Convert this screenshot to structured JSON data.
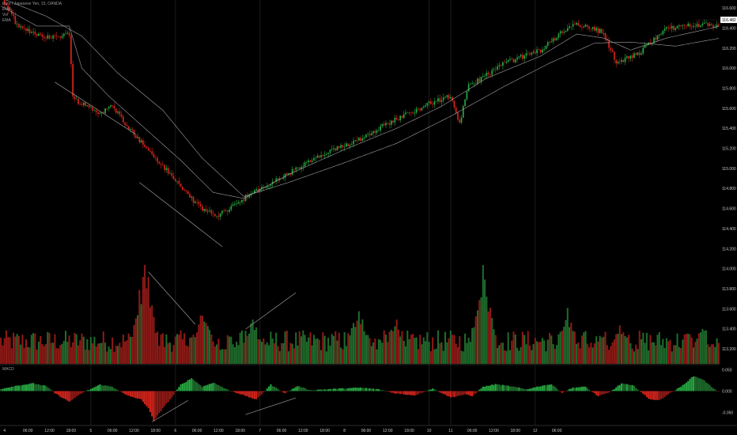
{
  "legend": {
    "symbol": "Euro / Japanese Yen, 15, OANDA",
    "ind1": "EMA",
    "ind2": "Vol",
    "ind3": "EMA"
  },
  "macd_label": "MACD",
  "colors": {
    "background": "#000000",
    "up": "#26a541",
    "down": "#d1241c",
    "up_volume": "#1f6b2c",
    "down_volume": "#8e1a16",
    "ema_line": "#bdbdbd",
    "trend_line": "#9a9a9a",
    "axis_text": "#c8c8c8",
    "last_price_bg": "#ffffff",
    "last_price_text": "#000000"
  },
  "chart_data": [
    {
      "type": "candlestick",
      "name": "price",
      "y_ticks": [
        "116.600",
        "116.400",
        "116.200",
        "116.000",
        "115.800",
        "115.600",
        "115.400",
        "115.200",
        "115.000",
        "114.800",
        "114.600",
        "114.400",
        "114.200",
        "114.000",
        "113.800",
        "113.600",
        "113.400",
        "113.200"
      ],
      "ylim": [
        113.05,
        116.68
      ],
      "last_price": "116.482",
      "x_ticks": [
        "4",
        "06:00",
        "12:00",
        "18:00",
        "5",
        "06:00",
        "12:00",
        "18:00",
        "6",
        "06:00",
        "12:00",
        "18:00",
        "7",
        "06:00",
        "12:00",
        "18:00",
        "8",
        "06:00",
        "12:00",
        "18:00",
        "10",
        "11",
        "06:00",
        "12:00",
        "18:00",
        "12",
        "06:00"
      ],
      "day_dividers": [
        "5",
        "6",
        "7",
        "10",
        "11",
        "12"
      ],
      "price_path": [
        [
          0,
          116.72
        ],
        [
          10,
          116.4
        ],
        [
          28,
          116.3
        ],
        [
          38,
          116.35
        ],
        [
          40,
          115.7
        ],
        [
          55,
          115.55
        ],
        [
          62,
          115.62
        ],
        [
          75,
          115.32
        ],
        [
          95,
          114.92
        ],
        [
          110,
          114.62
        ],
        [
          120,
          114.52
        ],
        [
          135,
          114.7
        ],
        [
          150,
          114.85
        ],
        [
          175,
          115.1
        ],
        [
          200,
          115.3
        ],
        [
          215,
          115.45
        ],
        [
          230,
          115.58
        ],
        [
          240,
          115.66
        ],
        [
          250,
          115.72
        ],
        [
          255,
          115.45
        ],
        [
          260,
          115.82
        ],
        [
          280,
          116.05
        ],
        [
          300,
          116.18
        ],
        [
          318,
          116.45
        ],
        [
          335,
          116.36
        ],
        [
          342,
          116.05
        ],
        [
          355,
          116.15
        ],
        [
          368,
          116.38
        ],
        [
          385,
          116.44
        ],
        [
          400,
          116.42
        ]
      ],
      "ema_fast_path": [
        [
          0,
          116.62
        ],
        [
          20,
          116.42
        ],
        [
          38,
          116.42
        ],
        [
          45,
          116.0
        ],
        [
          60,
          115.72
        ],
        [
          80,
          115.4
        ],
        [
          100,
          115.08
        ],
        [
          118,
          114.76
        ],
        [
          135,
          114.7
        ],
        [
          160,
          114.94
        ],
        [
          190,
          115.18
        ],
        [
          220,
          115.4
        ],
        [
          245,
          115.62
        ],
        [
          270,
          115.9
        ],
        [
          300,
          116.12
        ],
        [
          320,
          116.34
        ],
        [
          335,
          116.3
        ],
        [
          350,
          116.18
        ],
        [
          370,
          116.3
        ],
        [
          400,
          116.42
        ]
      ],
      "ema_slow_path": [
        [
          0,
          116.7
        ],
        [
          25,
          116.52
        ],
        [
          45,
          116.32
        ],
        [
          65,
          115.95
        ],
        [
          90,
          115.58
        ],
        [
          112,
          115.1
        ],
        [
          135,
          114.72
        ],
        [
          160,
          114.86
        ],
        [
          190,
          115.05
        ],
        [
          220,
          115.25
        ],
        [
          250,
          115.52
        ],
        [
          280,
          115.82
        ],
        [
          305,
          116.05
        ],
        [
          330,
          116.25
        ],
        [
          350,
          116.26
        ],
        [
          375,
          116.22
        ],
        [
          400,
          116.3
        ]
      ],
      "trend_lines": [
        [
          [
            30,
            115.86
          ],
          [
            75,
            115.34
          ]
        ],
        [
          [
            77,
            114.86
          ],
          [
            123,
            114.22
          ]
        ]
      ]
    },
    {
      "type": "bar",
      "name": "volume",
      "bar_count": 400,
      "spikes": [
        [
          80,
          1.0
        ],
        [
          112,
          0.55
        ],
        [
          140,
          0.45
        ],
        [
          199,
          0.58
        ],
        [
          220,
          0.45
        ],
        [
          268,
          0.95
        ],
        [
          315,
          0.52
        ],
        [
          345,
          0.4
        ],
        [
          390,
          0.35
        ]
      ],
      "trend_lines": [
        [
          [
            82,
            0.93
          ],
          [
            108,
            0.4
          ]
        ],
        [
          [
            136,
            0.35
          ],
          [
            164,
            0.72
          ]
        ]
      ]
    },
    {
      "type": "bar",
      "name": "macd",
      "y_ticks": [
        "0.050",
        "0.000",
        "-0.050"
      ],
      "ylim": [
        -0.075,
        0.06
      ],
      "histogram_path": [
        [
          0,
          0.005
        ],
        [
          8,
          0.012
        ],
        [
          18,
          0.018
        ],
        [
          25,
          0.012
        ],
        [
          30,
          -0.005
        ],
        [
          38,
          -0.025
        ],
        [
          45,
          -0.005
        ],
        [
          55,
          0.015
        ],
        [
          62,
          0.01
        ],
        [
          70,
          -0.01
        ],
        [
          78,
          -0.02
        ],
        [
          82,
          -0.04
        ],
        [
          85,
          -0.07
        ],
        [
          90,
          -0.04
        ],
        [
          95,
          -0.015
        ],
        [
          100,
          0.015
        ],
        [
          106,
          0.03
        ],
        [
          112,
          0.01
        ],
        [
          118,
          0.02
        ],
        [
          125,
          0.005
        ],
        [
          135,
          -0.01
        ],
        [
          142,
          -0.02
        ],
        [
          150,
          0.015
        ],
        [
          158,
          -0.005
        ],
        [
          165,
          0.012
        ],
        [
          172,
          0.002
        ],
        [
          180,
          0.004
        ],
        [
          190,
          0.006
        ],
        [
          200,
          0.008
        ],
        [
          210,
          0.004
        ],
        [
          220,
          -0.006
        ],
        [
          230,
          -0.01
        ],
        [
          240,
          0.006
        ],
        [
          250,
          -0.015
        ],
        [
          258,
          -0.008
        ],
        [
          262,
          -0.012
        ],
        [
          268,
          0.01
        ],
        [
          275,
          0.016
        ],
        [
          285,
          0.01
        ],
        [
          292,
          0.004
        ],
        [
          300,
          0.012
        ],
        [
          306,
          0.016
        ],
        [
          312,
          -0.004
        ],
        [
          318,
          0.008
        ],
        [
          325,
          0.01
        ],
        [
          332,
          -0.012
        ],
        [
          338,
          -0.004
        ],
        [
          345,
          0.018
        ],
        [
          352,
          0.012
        ],
        [
          360,
          -0.018
        ],
        [
          366,
          -0.022
        ],
        [
          370,
          -0.01
        ],
        [
          378,
          0.01
        ],
        [
          385,
          0.035
        ],
        [
          390,
          0.028
        ],
        [
          395,
          0.01
        ],
        [
          400,
          -0.004
        ]
      ],
      "trend_lines": [
        [
          [
            84,
            -0.072
          ],
          [
            104,
            -0.022
          ]
        ],
        [
          [
            136,
            -0.055
          ],
          [
            164,
            -0.016
          ]
        ]
      ]
    }
  ]
}
